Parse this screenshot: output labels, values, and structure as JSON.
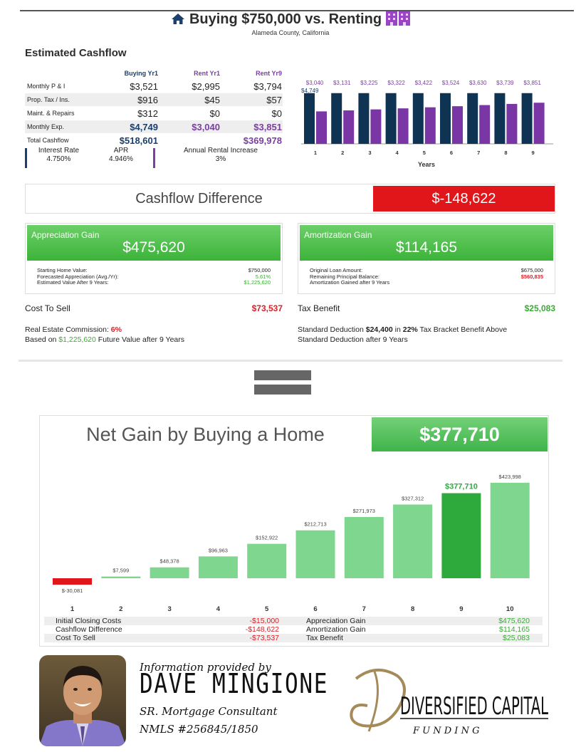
{
  "header": {
    "title": "Buying $750,000 vs. Renting",
    "location": "Alameda County, California"
  },
  "cashflow": {
    "title": "Estimated Cashflow",
    "columns": [
      "Buying Yr1",
      "Rent Yr1",
      "Rent Yr9"
    ],
    "rows": [
      {
        "label": "Monthly P & I",
        "values": [
          "$3,521",
          "$2,995",
          "$3,794"
        ]
      },
      {
        "label": "Prop. Tax / Ins.",
        "values": [
          "$916",
          "$45",
          "$57"
        ]
      },
      {
        "label": "Maint. & Repairs",
        "values": [
          "$312",
          "$0",
          "$0"
        ]
      },
      {
        "label": "Monthly Exp.",
        "values": [
          "$4,749",
          "$3,040",
          "$3,851"
        ]
      },
      {
        "label": "Total Cashflow",
        "values": [
          "$518,601",
          "",
          "$369,978"
        ]
      }
    ],
    "interest_rate_label": "Interest Rate",
    "interest_rate": "4.750%",
    "apr_label": "APR",
    "apr": "4.946%",
    "rental_increase_label": "Annual Rental Increase",
    "rental_increase": "3%"
  },
  "chart_data": [
    {
      "type": "bar",
      "categories": [
        "1",
        "2",
        "3",
        "4",
        "5",
        "6",
        "7",
        "8",
        "9"
      ],
      "series": [
        {
          "values": [
            4749,
            4749,
            4749,
            4749,
            4749,
            4749,
            4749,
            4749,
            4749
          ],
          "color": "#0f3352"
        },
        {
          "values": [
            3040,
            3131,
            3225,
            3322,
            3422,
            3524,
            3630,
            3739,
            3851
          ],
          "color": "#7b36a6"
        }
      ],
      "series_top_label": "$4,749",
      "data_labels": [
        "$3,040",
        "$3,131",
        "$3,225",
        "$3,322",
        "$3,422",
        "$3,524",
        "$3,630",
        "$3,739",
        "$3,851"
      ],
      "xlabel": "Years",
      "ylim": [
        0,
        5000
      ],
      "grid": false
    },
    {
      "type": "bar",
      "categories": [
        "1",
        "2",
        "3",
        "4",
        "5",
        "6",
        "7",
        "8",
        "9",
        "10"
      ],
      "values": [
        -30081,
        7599,
        48378,
        96963,
        152922,
        212713,
        271973,
        327312,
        377710,
        423998
      ],
      "data_labels": [
        "$-30,081",
        "$7,599",
        "$48,378",
        "$96,963",
        "$152,922",
        "$212,713",
        "$271,973",
        "$327,312",
        "$377,710",
        "$423,998"
      ],
      "highlight_index": 8,
      "colors": {
        "normal": "#7fd68e",
        "highlight": "#2eaa3c",
        "negative": "#e0161b"
      },
      "ylim": [
        -40000,
        430000
      ],
      "grid": false
    }
  ],
  "difference": {
    "label": "Cashflow Difference",
    "value": "$-148,622"
  },
  "appreciation": {
    "title": "Appreciation Gain",
    "value": "$475,620",
    "rows": [
      {
        "label": "Starting Home Value:",
        "value": "$750,000"
      },
      {
        "label": "Forecasted Appreciation (Avg./Yr):",
        "value": "5.61%"
      },
      {
        "label": "Estimated Value After 9 Years:",
        "value": "$1,225,620"
      }
    ]
  },
  "amortization": {
    "title": "Amortization Gain",
    "value": "$114,165",
    "rows": [
      {
        "label": "Original Loan Amount:",
        "value": "$675,000"
      },
      {
        "label": "Remaining Principal Balance:",
        "value": "$560,835"
      },
      {
        "label": "Amortization Gained after 9 Years",
        "value": ""
      }
    ]
  },
  "cost_to_sell": {
    "label": "Cost To Sell",
    "value": "$73,537",
    "line1_prefix": "Real Estate Commission:",
    "commission": "6%",
    "line2_prefix": "Based on",
    "future_value": "$1,225,620",
    "line2_suffix": "Future Value after 9 Years"
  },
  "tax_benefit": {
    "label": "Tax Benefit",
    "value": "$25,083",
    "line1_a": "Standard Deduction",
    "deduction": "$24,400",
    "line1_b": "in",
    "bracket": "22%",
    "line1_c": "Tax Bracket Benefit Above",
    "line2": "Standard Deduction after 9 Years"
  },
  "net_gain": {
    "title": "Net Gain by Buying a Home",
    "value": "$377,710",
    "table": [
      {
        "a": "Initial Closing Costs",
        "b": "-$15,000",
        "c": "Appreciation Gain",
        "d": "$475,620"
      },
      {
        "a": "Cashflow Difference",
        "b": "-$148,622",
        "c": "Amortization Gain",
        "d": "$114,165"
      },
      {
        "a": "Cost To Sell",
        "b": "-$73,537",
        "c": "Tax Benefit",
        "d": "$25,083"
      }
    ]
  },
  "footer": {
    "provided_by": "Information provided by",
    "name": "DAVE MINGIONE",
    "role": "SR. Mortgage Consultant",
    "nmls": "NMLS #256845/1850",
    "logo_text": "DIVERSIFIED CAPITAL",
    "logo_sub": "F U N D I N G"
  }
}
